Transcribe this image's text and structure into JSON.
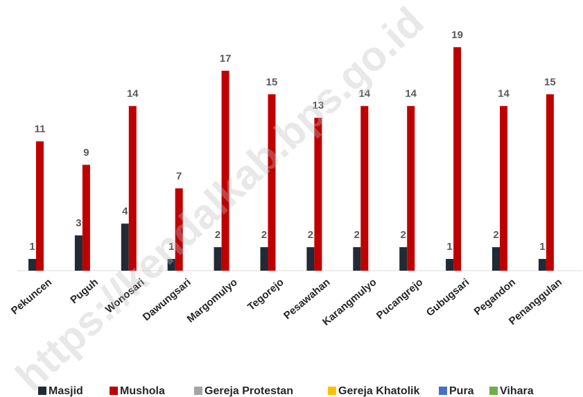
{
  "chart_data": {
    "type": "bar",
    "categories": [
      "Pekuncen",
      "Puguh",
      "Wonosari",
      "Dawungsari",
      "Margomulyo",
      "Tegorejo",
      "Pesawahan",
      "Karangmulyo",
      "Pucangrejo",
      "Gubugsari",
      "Pegandon",
      "Penanggulan"
    ],
    "series": [
      {
        "name": "Masjid",
        "color": "#222a35",
        "values": [
          1,
          3,
          4,
          1,
          2,
          2,
          2,
          2,
          2,
          1,
          2,
          1
        ]
      },
      {
        "name": "Mushola",
        "color": "#c00000",
        "values": [
          11,
          9,
          14,
          7,
          17,
          15,
          13,
          14,
          14,
          19,
          14,
          15
        ]
      },
      {
        "name": "Gereja Protestan",
        "color": "#a5a5a5",
        "values": [
          0,
          0,
          0,
          0,
          0,
          0,
          0,
          0,
          0,
          0,
          0,
          0
        ]
      },
      {
        "name": "Gereja Khatolik",
        "color": "#ffc000",
        "values": [
          0,
          0,
          0,
          0,
          0,
          0,
          0,
          0,
          0,
          0,
          0,
          0
        ]
      },
      {
        "name": "Pura",
        "color": "#4472c4",
        "values": [
          0,
          0,
          0,
          0,
          0,
          0,
          0,
          0,
          0,
          0,
          0,
          0
        ]
      },
      {
        "name": "Vihara",
        "color": "#70ad47",
        "values": [
          0,
          0,
          0,
          0,
          0,
          0,
          0,
          0,
          0,
          0,
          0,
          0
        ]
      }
    ],
    "ylim": [
      0,
      19
    ],
    "legend": "bottom",
    "watermark": "https://kendalkab.bps.go.id"
  }
}
